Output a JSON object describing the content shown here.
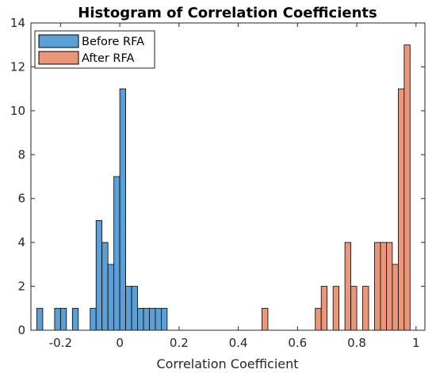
{
  "chart_data": {
    "type": "bar",
    "title": "Histogram of Correlation Coefficients",
    "xlabel": "Correlation Coefficient",
    "ylabel": "",
    "xlim": [
      -0.3,
      1.03
    ],
    "ylim": [
      0,
      14
    ],
    "bin_width": 0.02,
    "xticks": [
      -0.2,
      0,
      0.2,
      0.4,
      0.6,
      0.8,
      1
    ],
    "xtick_labels": [
      "-0.2",
      "0",
      "0.2",
      "0.4",
      "0.6",
      "0.8",
      "1"
    ],
    "yticks": [
      0,
      2,
      4,
      6,
      8,
      10,
      12,
      14
    ],
    "ytick_labels": [
      "0",
      "2",
      "4",
      "6",
      "8",
      "10",
      "12",
      "14"
    ],
    "grid": false,
    "legend_position": "top-left",
    "series": [
      {
        "name": "Before RFA",
        "color": "#5b9fd5",
        "bins": [
          {
            "x0": -0.28,
            "count": 1
          },
          {
            "x0": -0.22,
            "count": 1
          },
          {
            "x0": -0.2,
            "count": 1
          },
          {
            "x0": -0.16,
            "count": 1
          },
          {
            "x0": -0.1,
            "count": 1
          },
          {
            "x0": -0.08,
            "count": 5
          },
          {
            "x0": -0.06,
            "count": 4
          },
          {
            "x0": -0.04,
            "count": 3
          },
          {
            "x0": -0.02,
            "count": 7
          },
          {
            "x0": 0.0,
            "count": 11
          },
          {
            "x0": 0.02,
            "count": 2
          },
          {
            "x0": 0.04,
            "count": 2
          },
          {
            "x0": 0.06,
            "count": 1
          },
          {
            "x0": 0.08,
            "count": 1
          },
          {
            "x0": 0.1,
            "count": 1
          },
          {
            "x0": 0.12,
            "count": 1
          },
          {
            "x0": 0.14,
            "count": 1
          }
        ]
      },
      {
        "name": "After RFA",
        "color": "#e9967a",
        "bins": [
          {
            "x0": 0.48,
            "count": 1
          },
          {
            "x0": 0.66,
            "count": 1
          },
          {
            "x0": 0.68,
            "count": 2
          },
          {
            "x0": 0.72,
            "count": 2
          },
          {
            "x0": 0.76,
            "count": 4
          },
          {
            "x0": 0.78,
            "count": 2
          },
          {
            "x0": 0.82,
            "count": 2
          },
          {
            "x0": 0.86,
            "count": 4
          },
          {
            "x0": 0.88,
            "count": 4
          },
          {
            "x0": 0.9,
            "count": 4
          },
          {
            "x0": 0.92,
            "count": 3
          },
          {
            "x0": 0.94,
            "count": 11
          },
          {
            "x0": 0.96,
            "count": 13
          }
        ]
      }
    ]
  },
  "colors": {
    "axis": "#262626",
    "background": "#ffffff"
  }
}
